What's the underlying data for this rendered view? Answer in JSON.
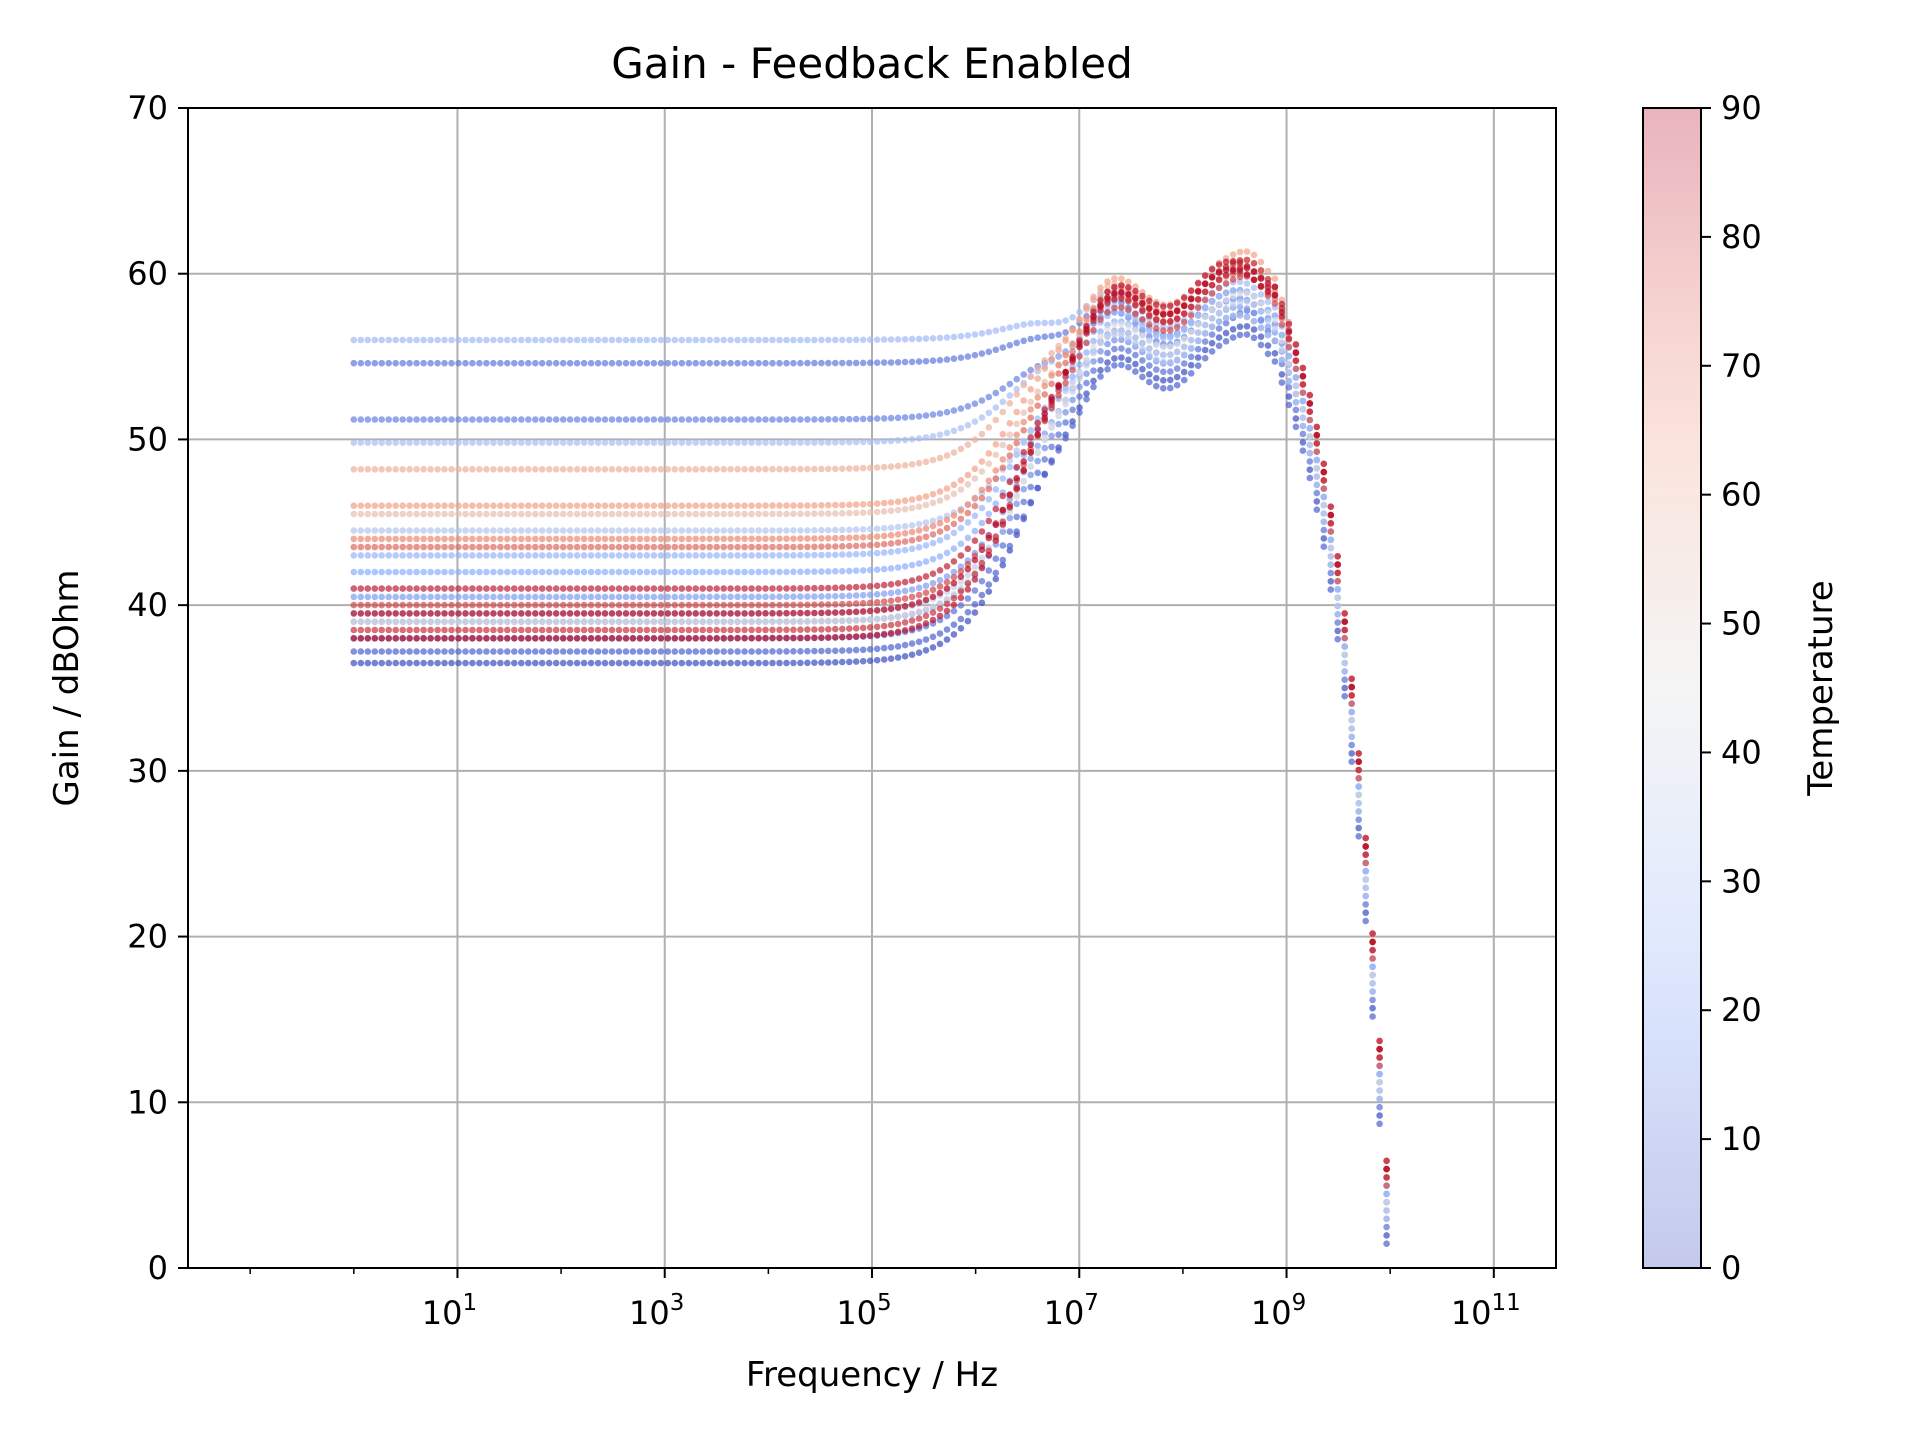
{
  "chart_data": {
    "type": "scatter",
    "title": "Gain - Feedback Enabled",
    "xlabel": "Frequency / Hz",
    "ylabel": "Gain / dBOhm",
    "xscale": "log",
    "xlim_log10": [
      -1.6,
      11.6
    ],
    "ylim": [
      0,
      70
    ],
    "grid": true,
    "x_ticks": [
      {
        "log10": 1,
        "base": "10",
        "exp": "1"
      },
      {
        "log10": 3,
        "base": "10",
        "exp": "3"
      },
      {
        "log10": 5,
        "base": "10",
        "exp": "5"
      },
      {
        "log10": 7,
        "base": "10",
        "exp": "7"
      },
      {
        "log10": 9,
        "base": "10",
        "exp": "9"
      },
      {
        "log10": 11,
        "base": "10",
        "exp": "11"
      }
    ],
    "y_ticks": [
      0,
      10,
      20,
      30,
      40,
      50,
      60,
      70
    ],
    "colorbar": {
      "label": "Temperature",
      "range": [
        0,
        90
      ],
      "ticks": [
        0,
        10,
        20,
        30,
        40,
        50,
        60,
        70,
        80,
        90
      ],
      "colormap": "coolwarm",
      "alpha": 0.3
    },
    "marker_alpha": 0.7,
    "frequency_range_log10": [
      0,
      10.1
    ],
    "series": [
      {
        "temperature": 0,
        "low_freq_gain": 36.5,
        "plateau": 55.0,
        "hf_peak": 56.5
      },
      {
        "temperature": 5,
        "low_freq_gain": 37.2,
        "plateau": 54.5,
        "hf_peak": 56.0
      },
      {
        "temperature": 8,
        "low_freq_gain": 38.0,
        "plateau": 55.5,
        "hf_peak": 57.5
      },
      {
        "temperature": 10,
        "low_freq_gain": 54.6,
        "plateau": 57.5,
        "hf_peak": 58.5
      },
      {
        "temperature": 12,
        "low_freq_gain": 51.2,
        "plateau": 57.0,
        "hf_peak": 58.0
      },
      {
        "temperature": 15,
        "low_freq_gain": 39.0,
        "plateau": 56.0,
        "hf_peak": 57.0
      },
      {
        "temperature": 18,
        "low_freq_gain": 40.5,
        "plateau": 56.5,
        "hf_peak": 57.5
      },
      {
        "temperature": 22,
        "low_freq_gain": 42.0,
        "plateau": 57.0,
        "hf_peak": 58.0
      },
      {
        "temperature": 25,
        "low_freq_gain": 43.0,
        "plateau": 57.5,
        "hf_peak": 58.5
      },
      {
        "temperature": 28,
        "low_freq_gain": 56.0,
        "plateau": 58.0,
        "hf_peak": 59.0
      },
      {
        "temperature": 30,
        "low_freq_gain": 49.8,
        "plateau": 57.5,
        "hf_peak": 58.5
      },
      {
        "temperature": 33,
        "low_freq_gain": 44.5,
        "plateau": 56.0,
        "hf_peak": 57.0
      },
      {
        "temperature": 38,
        "low_freq_gain": 39.5,
        "plateau": 56.5,
        "hf_peak": 58.0
      },
      {
        "temperature": 45,
        "low_freq_gain": 39.0,
        "plateau": 57.0,
        "hf_peak": 58.5
      },
      {
        "temperature": 55,
        "low_freq_gain": 45.5,
        "plateau": 58.5,
        "hf_peak": 60.0
      },
      {
        "temperature": 60,
        "low_freq_gain": 48.2,
        "plateau": 59.0,
        "hf_peak": 60.5
      },
      {
        "temperature": 65,
        "low_freq_gain": 46.0,
        "plateau": 59.5,
        "hf_peak": 61.0
      },
      {
        "temperature": 70,
        "low_freq_gain": 44.0,
        "plateau": 59.0,
        "hf_peak": 60.0
      },
      {
        "temperature": 75,
        "low_freq_gain": 43.5,
        "plateau": 58.5,
        "hf_peak": 59.5
      },
      {
        "temperature": 80,
        "low_freq_gain": 40.0,
        "plateau": 58.0,
        "hf_peak": 59.5
      },
      {
        "temperature": 83,
        "low_freq_gain": 38.5,
        "plateau": 59.0,
        "hf_peak": 60.5
      },
      {
        "temperature": 86,
        "low_freq_gain": 41.0,
        "plateau": 58.5,
        "hf_peak": 60.0
      },
      {
        "temperature": 88,
        "low_freq_gain": 38.0,
        "plateau": 59.5,
        "hf_peak": 60.0
      },
      {
        "temperature": 90,
        "low_freq_gain": 39.5,
        "plateau": 59.0,
        "hf_peak": 59.5
      }
    ],
    "colors": {
      "grid": "#b0b0b0",
      "axis": "#000000",
      "cmap_0": "#3b4cc0",
      "cmap_25": "#8db0fe",
      "cmap_50": "#dddddd",
      "cmap_75": "#f49a7b",
      "cmap_100": "#b40426"
    }
  }
}
